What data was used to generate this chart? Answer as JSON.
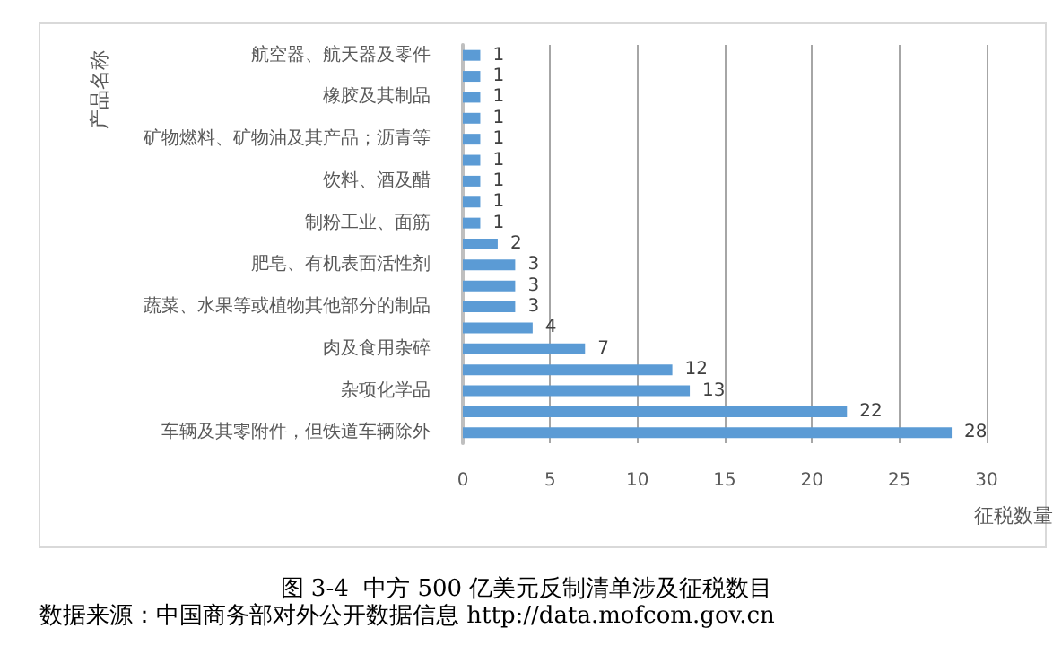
{
  "chart_data": {
    "type": "bar",
    "orientation": "horizontal",
    "title": "图 3-4  中方 500 亿美元反制清单涉及征税数目",
    "xlabel": "征税数量",
    "ylabel": "产品名称",
    "categories": [
      "航空器、航天器及零件",
      null,
      "橡胶及其制品",
      null,
      "矿物燃料、矿物油及其产品；沥青等",
      null,
      "饮料、酒及醋",
      null,
      "制粉工业、面筋",
      null,
      "肥皂、有机表面活性剂",
      null,
      "蔬菜、水果等或植物其他部分的制品",
      null,
      "肉及食用杂碎",
      null,
      "杂项化学品",
      null,
      "车辆及其零附件，但铁道车辆除外"
    ],
    "values": [
      1,
      1,
      1,
      1,
      1,
      1,
      1,
      1,
      1,
      2,
      3,
      3,
      3,
      4,
      7,
      12,
      13,
      22,
      28
    ],
    "color": "#5b9bd5",
    "xlim": [
      0,
      30
    ],
    "xticks": [
      0,
      5,
      10,
      15,
      20,
      25,
      30
    ],
    "grid": "x",
    "data_labels": true,
    "annotations": [
      "数据来源：中国商务部对外公开数据信息 http://data.mofcom.gov.cn"
    ]
  }
}
